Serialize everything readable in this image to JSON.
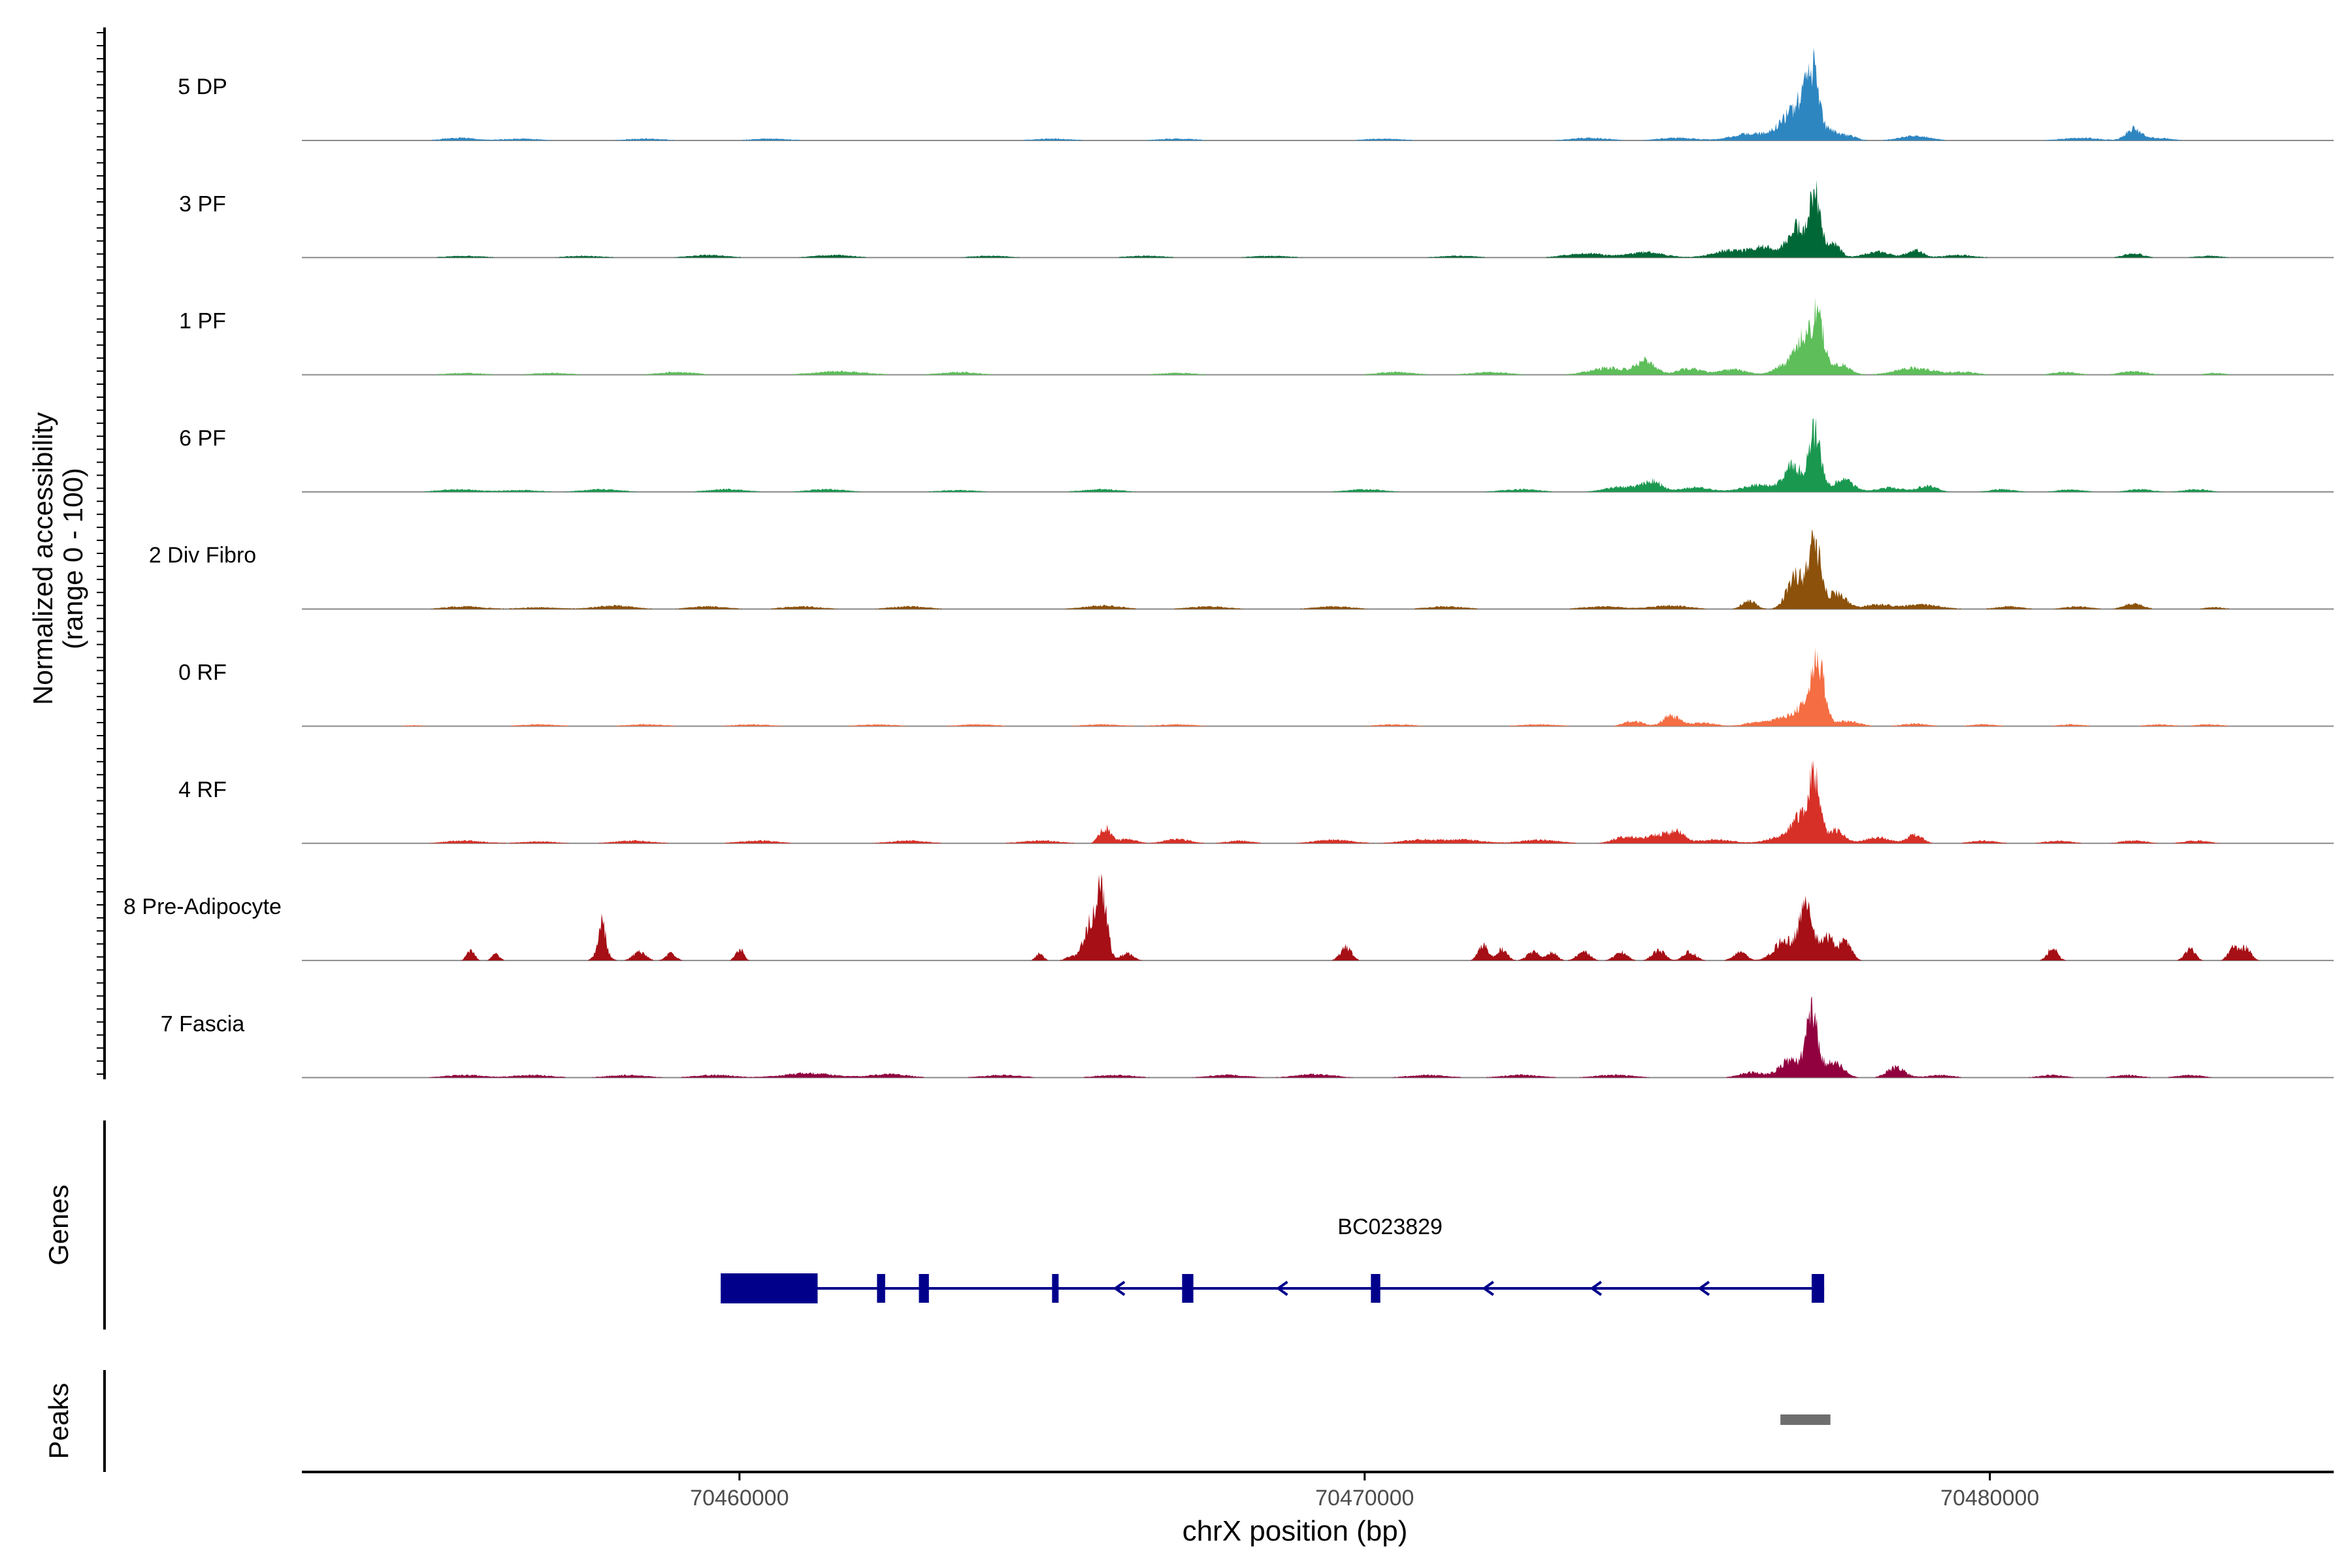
{
  "chart_data": {
    "type": "area",
    "title": "",
    "ylabel_line1": "Normalized accessibility",
    "ylabel_line2": "(range 0 - 100)",
    "xlabel": "chrX position (bp)",
    "xlim": [
      70453000,
      70485500
    ],
    "xticks": [
      {
        "value": 70460000,
        "label": "70460000"
      },
      {
        "value": 70470000,
        "label": "70470000"
      },
      {
        "value": 70480000,
        "label": "70480000"
      }
    ],
    "ylim": [
      0,
      100
    ],
    "tracks": [
      {
        "name": "5 DP",
        "color": "#2E86C1",
        "peaks": [
          [
            70455500,
            3,
            250
          ],
          [
            70456500,
            2,
            300
          ],
          [
            70458500,
            2,
            300
          ],
          [
            70460500,
            2,
            300
          ],
          [
            70465000,
            2,
            300
          ],
          [
            70467000,
            2,
            300
          ],
          [
            70470300,
            2,
            300
          ],
          [
            70473600,
            3,
            300
          ],
          [
            70475000,
            3,
            300
          ],
          [
            70476200,
            8,
            300
          ],
          [
            70476750,
            22,
            160
          ],
          [
            70477180,
            70,
            95
          ],
          [
            70477000,
            35,
            130
          ],
          [
            70477450,
            10,
            100
          ],
          [
            70477700,
            6,
            150
          ],
          [
            70478800,
            5,
            250
          ],
          [
            70481450,
            3,
            300
          ],
          [
            70482300,
            13,
            120
          ],
          [
            70482700,
            3,
            200
          ]
        ]
      },
      {
        "name": "3 PF",
        "color": "#006837",
        "peaks": [
          [
            70455600,
            2,
            300
          ],
          [
            70457500,
            2,
            300
          ],
          [
            70459500,
            3,
            300
          ],
          [
            70461500,
            3,
            300
          ],
          [
            70464000,
            2,
            300
          ],
          [
            70466500,
            2,
            300
          ],
          [
            70468500,
            2,
            300
          ],
          [
            70471500,
            2,
            300
          ],
          [
            70473500,
            5,
            300
          ],
          [
            70474500,
            6,
            300
          ],
          [
            70475800,
            8,
            250
          ],
          [
            70476400,
            12,
            220
          ],
          [
            70476900,
            35,
            130
          ],
          [
            70477200,
            72,
            95
          ],
          [
            70477500,
            15,
            110
          ],
          [
            70478200,
            7,
            200
          ],
          [
            70478800,
            9,
            120
          ],
          [
            70479500,
            3,
            250
          ],
          [
            70482300,
            5,
            150
          ],
          [
            70483500,
            2,
            200
          ]
        ]
      },
      {
        "name": "1 PF",
        "color": "#5DBE5A",
        "peaks": [
          [
            70455600,
            2,
            300
          ],
          [
            70457000,
            2,
            300
          ],
          [
            70459000,
            3,
            300
          ],
          [
            70461600,
            4,
            400
          ],
          [
            70463500,
            3,
            300
          ],
          [
            70467000,
            2,
            300
          ],
          [
            70470500,
            3,
            300
          ],
          [
            70472000,
            3,
            300
          ],
          [
            70473900,
            8,
            300
          ],
          [
            70474500,
            15,
            150
          ],
          [
            70475200,
            7,
            200
          ],
          [
            70475900,
            6,
            220
          ],
          [
            70476700,
            10,
            160
          ],
          [
            70477000,
            40,
            130
          ],
          [
            70477250,
            65,
            95
          ],
          [
            70477600,
            12,
            150
          ],
          [
            70478800,
            8,
            300
          ],
          [
            70479600,
            3,
            200
          ],
          [
            70481200,
            3,
            200
          ],
          [
            70482300,
            4,
            200
          ],
          [
            70483600,
            2,
            150
          ]
        ]
      },
      {
        "name": "6 PF",
        "color": "#1A9850",
        "peaks": [
          [
            70455500,
            3,
            300
          ],
          [
            70456500,
            2,
            300
          ],
          [
            70457800,
            3,
            300
          ],
          [
            70459800,
            3,
            300
          ],
          [
            70461400,
            3,
            300
          ],
          [
            70463500,
            2,
            300
          ],
          [
            70465800,
            3,
            300
          ],
          [
            70470000,
            3,
            300
          ],
          [
            70472500,
            3,
            300
          ],
          [
            70474100,
            6,
            250
          ],
          [
            70474600,
            12,
            150
          ],
          [
            70475300,
            5,
            250
          ],
          [
            70476300,
            8,
            250
          ],
          [
            70476850,
            30,
            140
          ],
          [
            70477200,
            68,
            95
          ],
          [
            70477650,
            14,
            160
          ],
          [
            70478400,
            5,
            200
          ],
          [
            70479000,
            7,
            150
          ],
          [
            70480200,
            3,
            200
          ],
          [
            70481300,
            3,
            200
          ],
          [
            70482400,
            3,
            200
          ],
          [
            70483300,
            3,
            200
          ]
        ]
      },
      {
        "name": "2 Div Fibro",
        "color": "#8C510A",
        "peaks": [
          [
            70455600,
            3,
            300
          ],
          [
            70456800,
            2,
            300
          ],
          [
            70458000,
            4,
            300
          ],
          [
            70459500,
            3,
            300
          ],
          [
            70461000,
            3,
            300
          ],
          [
            70462700,
            3,
            300
          ],
          [
            70465800,
            4,
            300
          ],
          [
            70467500,
            3,
            300
          ],
          [
            70469500,
            3,
            300
          ],
          [
            70471300,
            3,
            300
          ],
          [
            70473800,
            3,
            300
          ],
          [
            70474900,
            4,
            300
          ],
          [
            70476150,
            10,
            110
          ],
          [
            70476900,
            38,
            140
          ],
          [
            70477200,
            72,
            95
          ],
          [
            70477550,
            18,
            150
          ],
          [
            70478200,
            5,
            200
          ],
          [
            70478900,
            5,
            300
          ],
          [
            70480300,
            3,
            200
          ],
          [
            70481400,
            3,
            200
          ],
          [
            70482300,
            6,
            150
          ],
          [
            70483600,
            2,
            150
          ]
        ]
      },
      {
        "name": "0 RF",
        "color": "#F46D43",
        "peaks": [
          [
            70454800,
            1,
            200
          ],
          [
            70456800,
            2,
            300
          ],
          [
            70458500,
            2,
            300
          ],
          [
            70460200,
            2,
            300
          ],
          [
            70462200,
            2,
            300
          ],
          [
            70463800,
            2,
            300
          ],
          [
            70465800,
            2,
            300
          ],
          [
            70467000,
            2,
            300
          ],
          [
            70470500,
            2,
            300
          ],
          [
            70472800,
            2,
            300
          ],
          [
            70474300,
            6,
            150
          ],
          [
            70474900,
            12,
            130
          ],
          [
            70475400,
            4,
            200
          ],
          [
            70476300,
            5,
            200
          ],
          [
            70476700,
            9,
            140
          ],
          [
            70477250,
            75,
            100
          ],
          [
            70477000,
            20,
            130
          ],
          [
            70477700,
            6,
            200
          ],
          [
            70478800,
            3,
            200
          ],
          [
            70479900,
            2,
            200
          ],
          [
            70481300,
            2,
            200
          ],
          [
            70482700,
            2,
            200
          ],
          [
            70483500,
            2,
            200
          ]
        ]
      },
      {
        "name": "4 RF",
        "color": "#D73027",
        "peaks": [
          [
            70455600,
            3,
            300
          ],
          [
            70456800,
            2,
            300
          ],
          [
            70458300,
            3,
            300
          ],
          [
            70460300,
            3,
            300
          ],
          [
            70462700,
            3,
            300
          ],
          [
            70464800,
            3,
            300
          ],
          [
            70465850,
            18,
            90
          ],
          [
            70466200,
            5,
            150
          ],
          [
            70467000,
            5,
            200
          ],
          [
            70468000,
            3,
            200
          ],
          [
            70469500,
            4,
            300
          ],
          [
            70470900,
            4,
            300
          ],
          [
            70471600,
            4,
            300
          ],
          [
            70472800,
            4,
            300
          ],
          [
            70474200,
            8,
            200
          ],
          [
            70474700,
            10,
            150
          ],
          [
            70475000,
            12,
            120
          ],
          [
            70475600,
            4,
            300
          ],
          [
            70476600,
            6,
            200
          ],
          [
            70476950,
            30,
            130
          ],
          [
            70477200,
            75,
            95
          ],
          [
            70477550,
            15,
            120
          ],
          [
            70478200,
            7,
            200
          ],
          [
            70478800,
            10,
            120
          ],
          [
            70479900,
            3,
            200
          ],
          [
            70481100,
            3,
            200
          ],
          [
            70482300,
            3,
            200
          ],
          [
            70483300,
            3,
            200
          ]
        ]
      },
      {
        "name": "8 Pre-Adipocyte",
        "color": "#A50F15",
        "peaks": [
          [
            70455700,
            13,
            60
          ],
          [
            70456100,
            8,
            60
          ],
          [
            70457800,
            35,
            50
          ],
          [
            70457800,
            15,
            90
          ],
          [
            70458400,
            10,
            100
          ],
          [
            70458900,
            8,
            80
          ],
          [
            70460000,
            14,
            60
          ],
          [
            70464800,
            8,
            60
          ],
          [
            70465300,
            5,
            80
          ],
          [
            70465800,
            80,
            80
          ],
          [
            70465600,
            40,
            100
          ],
          [
            70466200,
            8,
            100
          ],
          [
            70469700,
            15,
            90
          ],
          [
            70471900,
            18,
            80
          ],
          [
            70472200,
            14,
            80
          ],
          [
            70472700,
            10,
            100
          ],
          [
            70473000,
            9,
            80
          ],
          [
            70473500,
            10,
            100
          ],
          [
            70474100,
            10,
            100
          ],
          [
            70474700,
            12,
            100
          ],
          [
            70475200,
            10,
            100
          ],
          [
            70476000,
            10,
            100
          ],
          [
            70476700,
            22,
            160
          ],
          [
            70477050,
            58,
            110
          ],
          [
            70477400,
            28,
            120
          ],
          [
            70477700,
            22,
            90
          ],
          [
            70481000,
            14,
            80
          ],
          [
            70483200,
            14,
            80
          ],
          [
            70483900,
            16,
            80
          ],
          [
            70484100,
            14,
            80
          ]
        ]
      },
      {
        "name": "7 Fascia",
        "color": "#91003F",
        "peaks": [
          [
            70455600,
            3,
            300
          ],
          [
            70456700,
            3,
            300
          ],
          [
            70458200,
            3,
            300
          ],
          [
            70459600,
            3,
            300
          ],
          [
            70461100,
            5,
            400
          ],
          [
            70462400,
            4,
            300
          ],
          [
            70464200,
            3,
            300
          ],
          [
            70466000,
            3,
            300
          ],
          [
            70467800,
            3,
            300
          ],
          [
            70469200,
            4,
            300
          ],
          [
            70471000,
            3,
            300
          ],
          [
            70472500,
            3,
            300
          ],
          [
            70474000,
            3,
            300
          ],
          [
            70476200,
            6,
            200
          ],
          [
            70476800,
            20,
            160
          ],
          [
            70477150,
            72,
            95
          ],
          [
            70477500,
            18,
            150
          ],
          [
            70478500,
            12,
            140
          ],
          [
            70479200,
            3,
            200
          ],
          [
            70481000,
            3,
            200
          ],
          [
            70482200,
            3,
            200
          ],
          [
            70483200,
            3,
            200
          ]
        ]
      }
    ],
    "genes_panel_label": "Genes",
    "gene": {
      "name": "BC023829",
      "start": 70459700,
      "end": 70477350,
      "strand": "-",
      "exons": [
        [
          70459700,
          70461250
        ],
        [
          70462200,
          70462330
        ],
        [
          70462870,
          70463030
        ],
        [
          70465000,
          70465070
        ],
        [
          70467080,
          70467260
        ],
        [
          70470100,
          70470250
        ],
        [
          70477150,
          70477350
        ]
      ]
    },
    "peaks_panel_label": "Peaks",
    "peaks": [
      [
        70476650,
        70477450
      ]
    ]
  }
}
